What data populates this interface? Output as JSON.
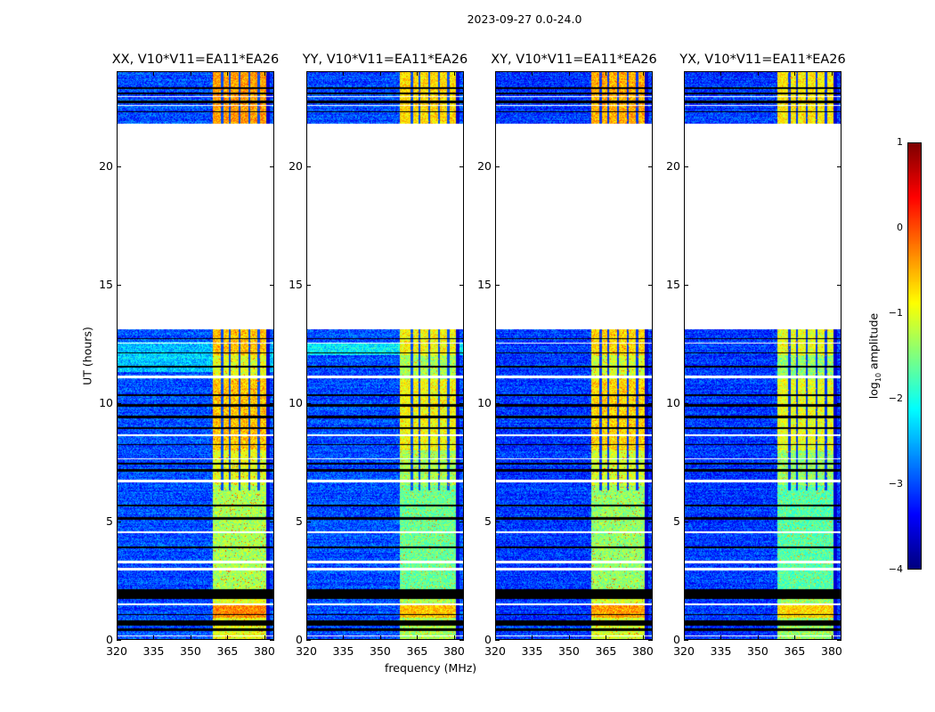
{
  "chart_data": {
    "type": "heatmap",
    "title": "2023-09-27 0.0-24.0",
    "xlabel": "frequency (MHz)",
    "ylabel": "UT (hours)",
    "xlim": [
      320,
      384
    ],
    "ylim": [
      0,
      24
    ],
    "xticks": [
      "320",
      "335",
      "350",
      "365",
      "380"
    ],
    "xtick_values": [
      320,
      335,
      350,
      365,
      380
    ],
    "yticks": [
      "0",
      "5",
      "10",
      "15",
      "20"
    ],
    "ytick_values": [
      0,
      5,
      10,
      15,
      20
    ],
    "colorbar": {
      "label_main": "log",
      "label_sub": "10",
      "label_rest": " amplitude",
      "colormap": "jet",
      "range": [
        -4,
        1
      ],
      "ticks": [
        "1",
        "0",
        "−1",
        "−2",
        "−3",
        "−4"
      ],
      "tick_values": [
        1,
        0,
        -1,
        -2,
        -3,
        -4
      ]
    },
    "data_time_segments_hours": [
      [
        0,
        13.1
      ],
      [
        21.8,
        24
      ]
    ],
    "flagged_black_hours": [
      [
        0.35,
        0.45
      ],
      [
        0.55,
        0.8
      ],
      [
        1.0,
        1.05
      ],
      [
        1.7,
        2.1
      ],
      [
        3.85,
        3.9
      ],
      [
        5.05,
        5.15
      ],
      [
        5.6,
        5.7
      ],
      [
        7.1,
        7.2
      ],
      [
        7.4,
        7.45
      ],
      [
        8.2,
        8.25
      ],
      [
        8.9,
        8.95
      ],
      [
        9.35,
        9.45
      ],
      [
        9.85,
        9.95
      ],
      [
        10.3,
        10.35
      ],
      [
        11.5,
        11.55
      ],
      [
        12.1,
        12.15
      ],
      [
        12.7,
        12.75
      ],
      [
        22.3,
        22.35
      ],
      [
        22.7,
        22.8
      ],
      [
        23.05,
        23.15
      ],
      [
        23.3,
        23.35
      ]
    ],
    "no_data_white_hours": [
      [
        0.12,
        0.15
      ],
      [
        1.45,
        1.5
      ],
      [
        2.9,
        3.0
      ],
      [
        3.2,
        3.3
      ],
      [
        4.5,
        4.55
      ],
      [
        6.62,
        6.75
      ],
      [
        7.6,
        7.65
      ],
      [
        8.6,
        8.65
      ],
      [
        11.05,
        11.15
      ],
      [
        12.5,
        12.55
      ],
      [
        22.55,
        22.6
      ],
      [
        22.95,
        23.0
      ]
    ],
    "panels": [
      {
        "title": "XX, V10*V11=EA11*EA26",
        "band_mhz": [
          359,
          381
        ],
        "background_log_amp": -3.0,
        "band_log_amp": -1.0,
        "peak_log_amp": 0.0
      },
      {
        "title": "YY, V10*V11=EA11*EA26",
        "band_mhz": [
          358,
          381
        ],
        "background_log_amp": -3.0,
        "band_log_amp": -1.3,
        "peak_log_amp": -0.3
      },
      {
        "title": "XY, V10*V11=EA11*EA26",
        "band_mhz": [
          359,
          381
        ],
        "background_log_amp": -3.1,
        "band_log_amp": -1.1,
        "peak_log_amp": 0.0
      },
      {
        "title": "YX, V10*V11=EA11*EA26",
        "band_mhz": [
          358,
          381
        ],
        "background_log_amp": -3.1,
        "band_log_amp": -1.4,
        "peak_log_amp": -0.4
      }
    ]
  }
}
